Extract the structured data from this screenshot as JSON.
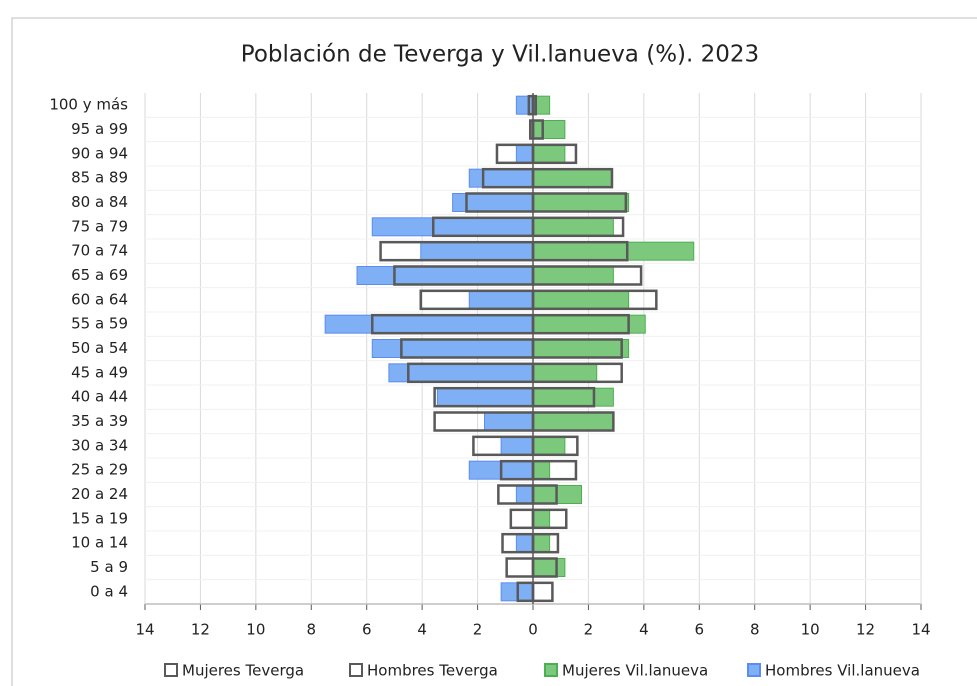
{
  "chart_data": {
    "type": "pyramid",
    "title": "Población de Teverga y Vil.lanueva (%). 2023",
    "categories": [
      "0 a 4",
      "5 a 9",
      "10 a 14",
      "15 a 19",
      "20 a 24",
      "25 a 29",
      "30 a 34",
      "35 a 39",
      "40 a 44",
      "45 a 49",
      "50 a 54",
      "55 a 59",
      "60 a 64",
      "65 a 69",
      "70 a 74",
      "75 a 79",
      "80 a 84",
      "85 a 89",
      "90 a 94",
      "95 a 99",
      "100 y más"
    ],
    "series": [
      {
        "name": "Hombres Vil.lanueva",
        "color": "#5b8def",
        "fill": "#7fb0f5",
        "values": [
          -1.15,
          0,
          -0.6,
          0,
          -0.6,
          -2.3,
          -1.15,
          -1.75,
          -3.45,
          -5.2,
          -5.8,
          -7.5,
          -2.3,
          -6.35,
          -4.05,
          -5.8,
          -2.9,
          -2.3,
          -0.6,
          0,
          -0.6
        ]
      },
      {
        "name": "Mujeres Vil.lanueva",
        "color": "#4caf50",
        "fill": "#7cc87c",
        "values": [
          0,
          1.15,
          0.6,
          0.6,
          1.75,
          0.6,
          1.15,
          2.9,
          2.9,
          2.3,
          3.45,
          4.05,
          3.45,
          2.9,
          5.8,
          2.9,
          3.45,
          2.85,
          1.15,
          1.15,
          0.6
        ]
      },
      {
        "name": "Hombres Teverga",
        "color": "#595959",
        "fill": "#ffffff",
        "values": [
          -0.55,
          -0.95,
          -1.1,
          -0.8,
          -1.25,
          -1.15,
          -2.15,
          -3.55,
          -3.55,
          -4.5,
          -4.75,
          -5.8,
          -4.05,
          -5.0,
          -5.5,
          -3.6,
          -2.4,
          -1.8,
          -1.3,
          -0.1,
          -0.15
        ]
      },
      {
        "name": "Mujeres Teverga",
        "color": "#595959",
        "fill": "#ffffff",
        "values": [
          0.7,
          0.85,
          0.9,
          1.2,
          0.85,
          1.55,
          1.6,
          2.9,
          2.2,
          3.2,
          3.2,
          3.45,
          4.45,
          3.9,
          3.4,
          3.25,
          3.35,
          2.85,
          1.55,
          0.35,
          0.1
        ]
      }
    ],
    "legend_order": [
      "Mujeres Teverga",
      "Hombres Teverga",
      "Mujeres Vil.lanueva",
      "Hombres Vil.lanueva"
    ],
    "xlim": [
      -14,
      14
    ],
    "xticks": [
      {
        "value": -14,
        "label": "14"
      },
      {
        "value": -12,
        "label": "12"
      },
      {
        "value": -10,
        "label": "10"
      },
      {
        "value": -8,
        "label": "8"
      },
      {
        "value": -6,
        "label": "6"
      },
      {
        "value": -4,
        "label": "4"
      },
      {
        "value": -2,
        "label": "2"
      },
      0,
      2,
      4,
      6,
      8,
      10,
      12,
      14
    ],
    "grid": true,
    "legend": "bottom"
  }
}
